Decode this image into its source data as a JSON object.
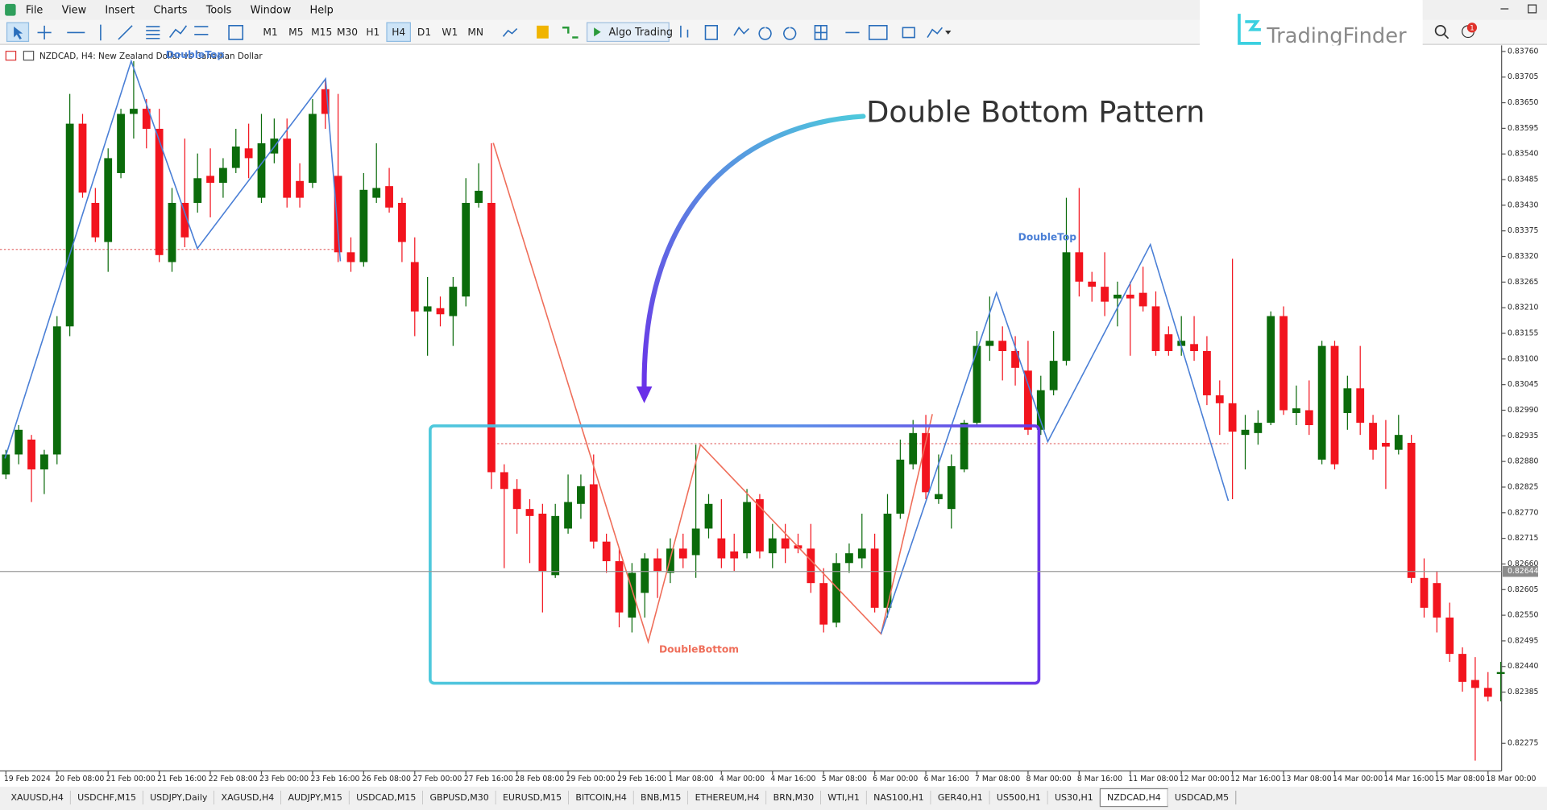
{
  "menu": [
    "File",
    "View",
    "Insert",
    "Charts",
    "Tools",
    "Window",
    "Help"
  ],
  "toolbar": {
    "timeframes": [
      "M1",
      "M5",
      "M15",
      "M30",
      "H1",
      "H4",
      "D1",
      "W1",
      "MN"
    ],
    "algo_trading": "Algo Trading",
    "notification_count": 1
  },
  "logo": {
    "text": "TradingFinder"
  },
  "chart": {
    "symbol_info": "NZDCAD, H4:  New Zealand Dollar vs Canadian Dollar",
    "headline": "Double Bottom Pattern",
    "pattern_labels": {
      "double_top_left": "DoubleTop",
      "double_top_right": "DoubleTop",
      "double_bottom": "DoubleBottom"
    },
    "price_axis": {
      "ylim": [
        0.8222,
        0.83771
      ],
      "ticks": [
        {
          "value": 0.8376,
          "label": "0.83760"
        },
        {
          "value": 0.83705,
          "label": "0.83705"
        },
        {
          "value": 0.8365,
          "label": "0.83650"
        },
        {
          "value": 0.83595,
          "label": "0.83595"
        },
        {
          "value": 0.8354,
          "label": "0.83540"
        },
        {
          "value": 0.83485,
          "label": "0.83485"
        },
        {
          "value": 0.8343,
          "label": "0.83430"
        },
        {
          "value": 0.83375,
          "label": "0.83375"
        },
        {
          "value": 0.8332,
          "label": "0.83320"
        },
        {
          "value": 0.83265,
          "label": "0.83265"
        },
        {
          "value": 0.8321,
          "label": "0.83210"
        },
        {
          "value": 0.83155,
          "label": "0.83155"
        },
        {
          "value": 0.831,
          "label": "0.83100"
        },
        {
          "value": 0.83045,
          "label": "0.83045"
        },
        {
          "value": 0.8299,
          "label": "0.82990"
        },
        {
          "value": 0.82935,
          "label": "0.82935"
        },
        {
          "value": 0.8288,
          "label": "0.82880"
        },
        {
          "value": 0.82825,
          "label": "0.82825"
        },
        {
          "value": 0.8277,
          "label": "0.82770"
        },
        {
          "value": 0.82715,
          "label": "0.82715"
        },
        {
          "value": 0.8266,
          "label": "0.82660"
        },
        {
          "value": 0.82605,
          "label": "0.82605"
        },
        {
          "value": 0.8255,
          "label": "0.82550"
        },
        {
          "value": 0.82495,
          "label": "0.82495"
        },
        {
          "value": 0.8244,
          "label": "0.82440"
        },
        {
          "value": 0.82385,
          "label": "0.82385"
        },
        {
          "value": 0.82275,
          "label": "0.82275"
        }
      ],
      "current_price": {
        "value": 0.82644,
        "label": "0.82644"
      }
    },
    "time_axis": {
      "labels": [
        "19 Feb 2024",
        "20 Feb 08:00",
        "21 Feb 00:00",
        "21 Feb 16:00",
        "22 Feb 08:00",
        "23 Feb 00:00",
        "23 Feb 16:00",
        "26 Feb 08:00",
        "27 Feb 00:00",
        "27 Feb 16:00",
        "28 Feb 08:00",
        "29 Feb 00:00",
        "29 Feb 16:00",
        "1 Mar 08:00",
        "4 Mar 00:00",
        "4 Mar 16:00",
        "5 Mar 08:00",
        "6 Mar 00:00",
        "6 Mar 16:00",
        "7 Mar 08:00",
        "8 Mar 00:00",
        "8 Mar 16:00",
        "11 Mar 08:00",
        "12 Mar 00:00",
        "12 Mar 16:00",
        "13 Mar 08:00",
        "14 Mar 00:00",
        "14 Mar 16:00",
        "15 Mar 08:00",
        "18 Mar 00:00"
      ]
    },
    "candles": [
      [
        0.82852,
        0.82905,
        0.82842,
        0.82895
      ],
      [
        0.82895,
        0.82958,
        0.82874,
        0.82948
      ],
      [
        0.82927,
        0.82937,
        0.82793,
        0.82863
      ],
      [
        0.82863,
        0.82905,
        0.8281,
        0.82895
      ],
      [
        0.82895,
        0.83192,
        0.82874,
        0.8317
      ],
      [
        0.8317,
        0.83669,
        0.83149,
        0.83605
      ],
      [
        0.83605,
        0.83626,
        0.83446,
        0.83457
      ],
      [
        0.83435,
        0.83467,
        0.83351,
        0.83361
      ],
      [
        0.83351,
        0.83552,
        0.83287,
        0.83531
      ],
      [
        0.83499,
        0.83637,
        0.83488,
        0.83626
      ],
      [
        0.83626,
        0.83739,
        0.83573,
        0.83637
      ],
      [
        0.83637,
        0.83658,
        0.83552,
        0.83594
      ],
      [
        0.83594,
        0.83637,
        0.83308,
        0.83323
      ],
      [
        0.83308,
        0.83467,
        0.83287,
        0.83435
      ],
      [
        0.83435,
        0.83573,
        0.8334,
        0.83361
      ],
      [
        0.83435,
        0.83541,
        0.83414,
        0.83488
      ],
      [
        0.83493,
        0.83552,
        0.83404,
        0.83478
      ],
      [
        0.83478,
        0.83531,
        0.83446,
        0.8351
      ],
      [
        0.8351,
        0.83594,
        0.83499,
        0.83556
      ],
      [
        0.83552,
        0.83605,
        0.83488,
        0.83531
      ],
      [
        0.83446,
        0.83626,
        0.83435,
        0.83563
      ],
      [
        0.83541,
        0.83616,
        0.8352,
        0.83573
      ],
      [
        0.83573,
        0.83616,
        0.83425,
        0.83446
      ],
      [
        0.83482,
        0.8352,
        0.83425,
        0.83446
      ],
      [
        0.83478,
        0.83658,
        0.83467,
        0.83626
      ],
      [
        0.83679,
        0.837,
        0.83594,
        0.83626
      ],
      [
        0.83493,
        0.83669,
        0.83308,
        0.83329
      ],
      [
        0.83329,
        0.83361,
        0.83287,
        0.83308
      ],
      [
        0.83308,
        0.83499,
        0.83298,
        0.83463
      ],
      [
        0.83446,
        0.83563,
        0.83435,
        0.83467
      ],
      [
        0.83471,
        0.8351,
        0.83414,
        0.83425
      ],
      [
        0.83435,
        0.83446,
        0.83308,
        0.83351
      ],
      [
        0.83308,
        0.83361,
        0.83149,
        0.83202
      ],
      [
        0.83202,
        0.83276,
        0.83107,
        0.83213
      ],
      [
        0.83209,
        0.83234,
        0.8317,
        0.83196
      ],
      [
        0.83192,
        0.83276,
        0.83128,
        0.83255
      ],
      [
        0.83234,
        0.83488,
        0.83213,
        0.83435
      ],
      [
        0.83435,
        0.8352,
        0.83425,
        0.83461
      ],
      [
        0.83435,
        0.83563,
        0.82821,
        0.82857
      ],
      [
        0.82857,
        0.82874,
        0.82651,
        0.82821
      ],
      [
        0.82821,
        0.82842,
        0.82725,
        0.82778
      ],
      [
        0.82778,
        0.82799,
        0.82662,
        0.82763
      ],
      [
        0.82768,
        0.82789,
        0.82556,
        0.82645
      ],
      [
        0.82636,
        0.82789,
        0.8263,
        0.82763
      ],
      [
        0.82736,
        0.82852,
        0.82725,
        0.82793
      ],
      [
        0.82789,
        0.82852,
        0.82757,
        0.82827
      ],
      [
        0.82831,
        0.82895,
        0.82693,
        0.82708
      ],
      [
        0.82708,
        0.82725,
        0.82641,
        0.82666
      ],
      [
        0.82666,
        0.82693,
        0.82524,
        0.82556
      ],
      [
        0.82545,
        0.82662,
        0.82513,
        0.82641
      ],
      [
        0.82598,
        0.82683,
        0.82545,
        0.82672
      ],
      [
        0.82672,
        0.82693,
        0.82587,
        0.82645
      ],
      [
        0.82641,
        0.82715,
        0.82619,
        0.82693
      ],
      [
        0.82693,
        0.82725,
        0.82651,
        0.82672
      ],
      [
        0.82679,
        0.82916,
        0.8263,
        0.82736
      ],
      [
        0.82736,
        0.8281,
        0.82715,
        0.82789
      ],
      [
        0.82715,
        0.82799,
        0.82651,
        0.82672
      ],
      [
        0.82687,
        0.82725,
        0.82645,
        0.82672
      ],
      [
        0.82683,
        0.82821,
        0.82672,
        0.82793
      ],
      [
        0.82799,
        0.8281,
        0.82672,
        0.82687
      ],
      [
        0.82683,
        0.82746,
        0.82651,
        0.82715
      ],
      [
        0.82715,
        0.82746,
        0.82662,
        0.82693
      ],
      [
        0.827,
        0.82725,
        0.82683,
        0.82693
      ],
      [
        0.82693,
        0.82746,
        0.82598,
        0.82619
      ],
      [
        0.82619,
        0.82651,
        0.82513,
        0.8253
      ],
      [
        0.82534,
        0.82683,
        0.82524,
        0.82662
      ],
      [
        0.82662,
        0.82704,
        0.82641,
        0.82683
      ],
      [
        0.82672,
        0.82768,
        0.82651,
        0.82693
      ],
      [
        0.82693,
        0.82725,
        0.82556,
        0.82566
      ],
      [
        0.82566,
        0.8281,
        0.82545,
        0.82768
      ],
      [
        0.82768,
        0.82927,
        0.82757,
        0.82884
      ],
      [
        0.82874,
        0.82969,
        0.82863,
        0.82941
      ],
      [
        0.82941,
        0.8298,
        0.82799,
        0.82814
      ],
      [
        0.82799,
        0.82895,
        0.82789,
        0.8281
      ],
      [
        0.82778,
        0.82895,
        0.82736,
        0.8287
      ],
      [
        0.82863,
        0.82969,
        0.82857,
        0.82963
      ],
      [
        0.82963,
        0.8316,
        0.82958,
        0.83128
      ],
      [
        0.83128,
        0.83234,
        0.83096,
        0.83139
      ],
      [
        0.83139,
        0.8317,
        0.83054,
        0.83117
      ],
      [
        0.83117,
        0.83149,
        0.83043,
        0.83081
      ],
      [
        0.83075,
        0.83139,
        0.82937,
        0.82948
      ],
      [
        0.82948,
        0.83064,
        0.82937,
        0.83033
      ],
      [
        0.83033,
        0.8316,
        0.83022,
        0.83096
      ],
      [
        0.83096,
        0.83446,
        0.83086,
        0.83329
      ],
      [
        0.83329,
        0.83467,
        0.83234,
        0.83266
      ],
      [
        0.83266,
        0.83287,
        0.83223,
        0.83255
      ],
      [
        0.83255,
        0.83329,
        0.83192,
        0.83223
      ],
      [
        0.8323,
        0.83266,
        0.8317,
        0.83238
      ],
      [
        0.83238,
        0.83266,
        0.83107,
        0.8323
      ],
      [
        0.83242,
        0.83298,
        0.83202,
        0.83213
      ],
      [
        0.83213,
        0.83245,
        0.83107,
        0.83117
      ],
      [
        0.83153,
        0.8317,
        0.83107,
        0.83117
      ],
      [
        0.83128,
        0.83192,
        0.83107,
        0.83139
      ],
      [
        0.83132,
        0.83192,
        0.83096,
        0.83117
      ],
      [
        0.83117,
        0.83149,
        0.83001,
        0.83022
      ],
      [
        0.83022,
        0.83054,
        0.82937,
        0.83005
      ],
      [
        0.83005,
        0.83315,
        0.82799,
        0.82944
      ],
      [
        0.82937,
        0.8298,
        0.82863,
        0.82948
      ],
      [
        0.82941,
        0.8299,
        0.82916,
        0.82963
      ],
      [
        0.82963,
        0.83202,
        0.82958,
        0.83192
      ],
      [
        0.83192,
        0.83213,
        0.8298,
        0.8299
      ],
      [
        0.82984,
        0.83043,
        0.82958,
        0.82994
      ],
      [
        0.8299,
        0.83054,
        0.82937,
        0.82958
      ],
      [
        0.82884,
        0.83139,
        0.82874,
        0.83128
      ],
      [
        0.83128,
        0.83139,
        0.82863,
        0.82874
      ],
      [
        0.82984,
        0.83064,
        0.82948,
        0.83037
      ],
      [
        0.83037,
        0.83128,
        0.82937,
        0.82963
      ],
      [
        0.82963,
        0.8298,
        0.82884,
        0.82905
      ],
      [
        0.8292,
        0.82969,
        0.82821,
        0.82912
      ],
      [
        0.82905,
        0.8298,
        0.82895,
        0.82937
      ],
      [
        0.8292,
        0.82937,
        0.82619,
        0.8263
      ],
      [
        0.8263,
        0.82672,
        0.82545,
        0.82566
      ],
      [
        0.82619,
        0.82645,
        0.82513,
        0.82545
      ],
      [
        0.82545,
        0.82577,
        0.8245,
        0.82467
      ],
      [
        0.82467,
        0.82481,
        0.82386,
        0.82407
      ],
      [
        0.82411,
        0.8246,
        0.82238,
        0.82394
      ],
      [
        0.82394,
        0.82428,
        0.82365,
        0.82375
      ],
      [
        0.82424,
        0.8245,
        0.82365,
        0.82428
      ]
    ]
  },
  "tabs": [
    "XAUUSD,H4",
    "USDCHF,M15",
    "USDJPY,Daily",
    "XAGUSD,H4",
    "AUDJPY,M15",
    "USDCAD,M15",
    "GBPUSD,M30",
    "EURUSD,M15",
    "BITCOIN,H4",
    "BNB,M15",
    "ETHEREUM,H4",
    "BRN,M30",
    "WTI,H1",
    "NAS100,H1",
    "GER40,H1",
    "US500,H1",
    "US30,H1",
    "NZDCAD,H4",
    "USDCAD,M5"
  ]
}
